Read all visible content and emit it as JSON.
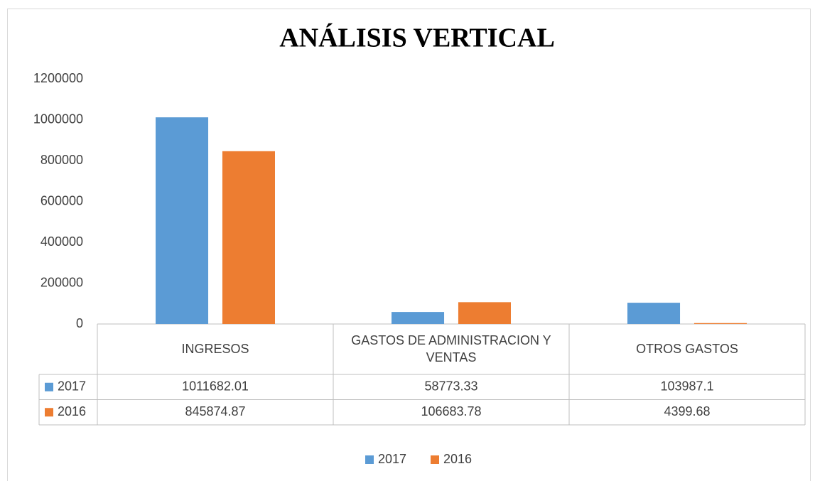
{
  "chart_data": {
    "type": "bar",
    "title": "ANÁLISIS VERTICAL",
    "categories": [
      "INGRESOS",
      "GASTOS DE ADMINISTRACION Y VENTAS",
      "OTROS GASTOS"
    ],
    "series": [
      {
        "name": "2017",
        "color": "#5b9bd5",
        "values": [
          1011682.01,
          58773.33,
          103987.1
        ]
      },
      {
        "name": "2016",
        "color": "#ed7d31",
        "values": [
          845874.87,
          106683.78,
          4399.68
        ]
      }
    ],
    "ylim": [
      0,
      1200000
    ],
    "yticks": [
      0,
      200000,
      400000,
      600000,
      800000,
      1000000,
      1200000
    ],
    "grid": false,
    "legend": "bottom"
  }
}
